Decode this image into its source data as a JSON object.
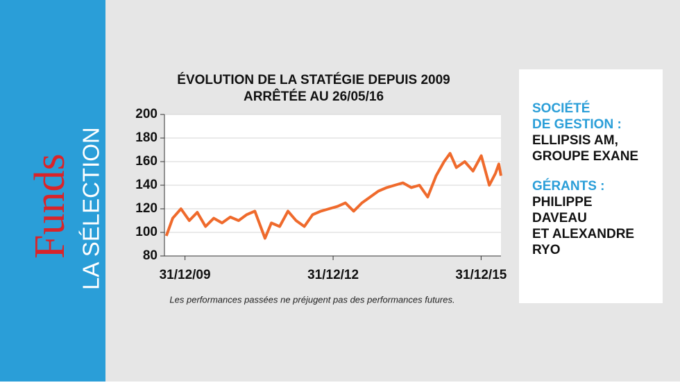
{
  "brand": {
    "name": "Funds",
    "section": "LA SÉLECTION"
  },
  "chart_data": {
    "type": "line",
    "title": "ÉVOLUTION DE LA STATÉGIE DEPUIS 2009",
    "subtitle": "ARRÊTÉE AU 26/05/16",
    "note": "Les performances passées ne préjugent pas des performances futures.",
    "x": [
      "2009-08-15",
      "2009-10-01",
      "2009-12-01",
      "2010-02-01",
      "2010-04-01",
      "2010-06-01",
      "2010-08-01",
      "2010-10-01",
      "2010-12-01",
      "2011-02-01",
      "2011-04-01",
      "2011-06-01",
      "2011-08-15",
      "2011-10-01",
      "2011-12-01",
      "2012-02-01",
      "2012-04-01",
      "2012-06-01",
      "2012-08-01",
      "2012-10-01",
      "2012-12-01",
      "2013-02-01",
      "2013-04-01",
      "2013-06-01",
      "2013-08-01",
      "2013-10-01",
      "2013-12-01",
      "2014-02-01",
      "2014-04-01",
      "2014-06-01",
      "2014-08-01",
      "2014-10-01",
      "2014-12-01",
      "2015-02-01",
      "2015-04-01",
      "2015-05-15",
      "2015-07-01",
      "2015-09-01",
      "2015-11-01",
      "2016-01-01",
      "2016-03-01",
      "2016-04-15",
      "2016-05-10",
      "2016-05-26"
    ],
    "series": [
      {
        "name": "Stratégie",
        "color": "#ef6a2c",
        "values": [
          97,
          112,
          120,
          110,
          117,
          105,
          112,
          108,
          113,
          110,
          115,
          118,
          95,
          108,
          105,
          118,
          110,
          105,
          115,
          118,
          120,
          122,
          125,
          118,
          125,
          130,
          135,
          138,
          140,
          142,
          138,
          140,
          130,
          148,
          160,
          167,
          155,
          160,
          152,
          165,
          140,
          150,
          158,
          148
        ]
      }
    ],
    "xlim": [
      "2009-08-01",
      "2016-05-26"
    ],
    "xticks": [
      {
        "value": "2009-12-31",
        "label": "31/12/09"
      },
      {
        "value": "2012-12-31",
        "label": "31/12/12"
      },
      {
        "value": "2015-12-31",
        "label": "31/12/15"
      }
    ],
    "ylim": [
      80,
      200
    ],
    "yticks": [
      80,
      100,
      120,
      140,
      160,
      180,
      200
    ],
    "grid": true
  },
  "sidebar": [
    {
      "heading": [
        "SOCIÉTÉ",
        "DE GESTION :"
      ],
      "lines": [
        "ELLIPSIS  AM,",
        "GROUPE EXANE"
      ]
    },
    {
      "heading": [
        "GÉRANTS :"
      ],
      "lines": [
        "PHILIPPE",
        "DAVEAU",
        "ET ALEXANDRE",
        "RYO"
      ]
    }
  ]
}
